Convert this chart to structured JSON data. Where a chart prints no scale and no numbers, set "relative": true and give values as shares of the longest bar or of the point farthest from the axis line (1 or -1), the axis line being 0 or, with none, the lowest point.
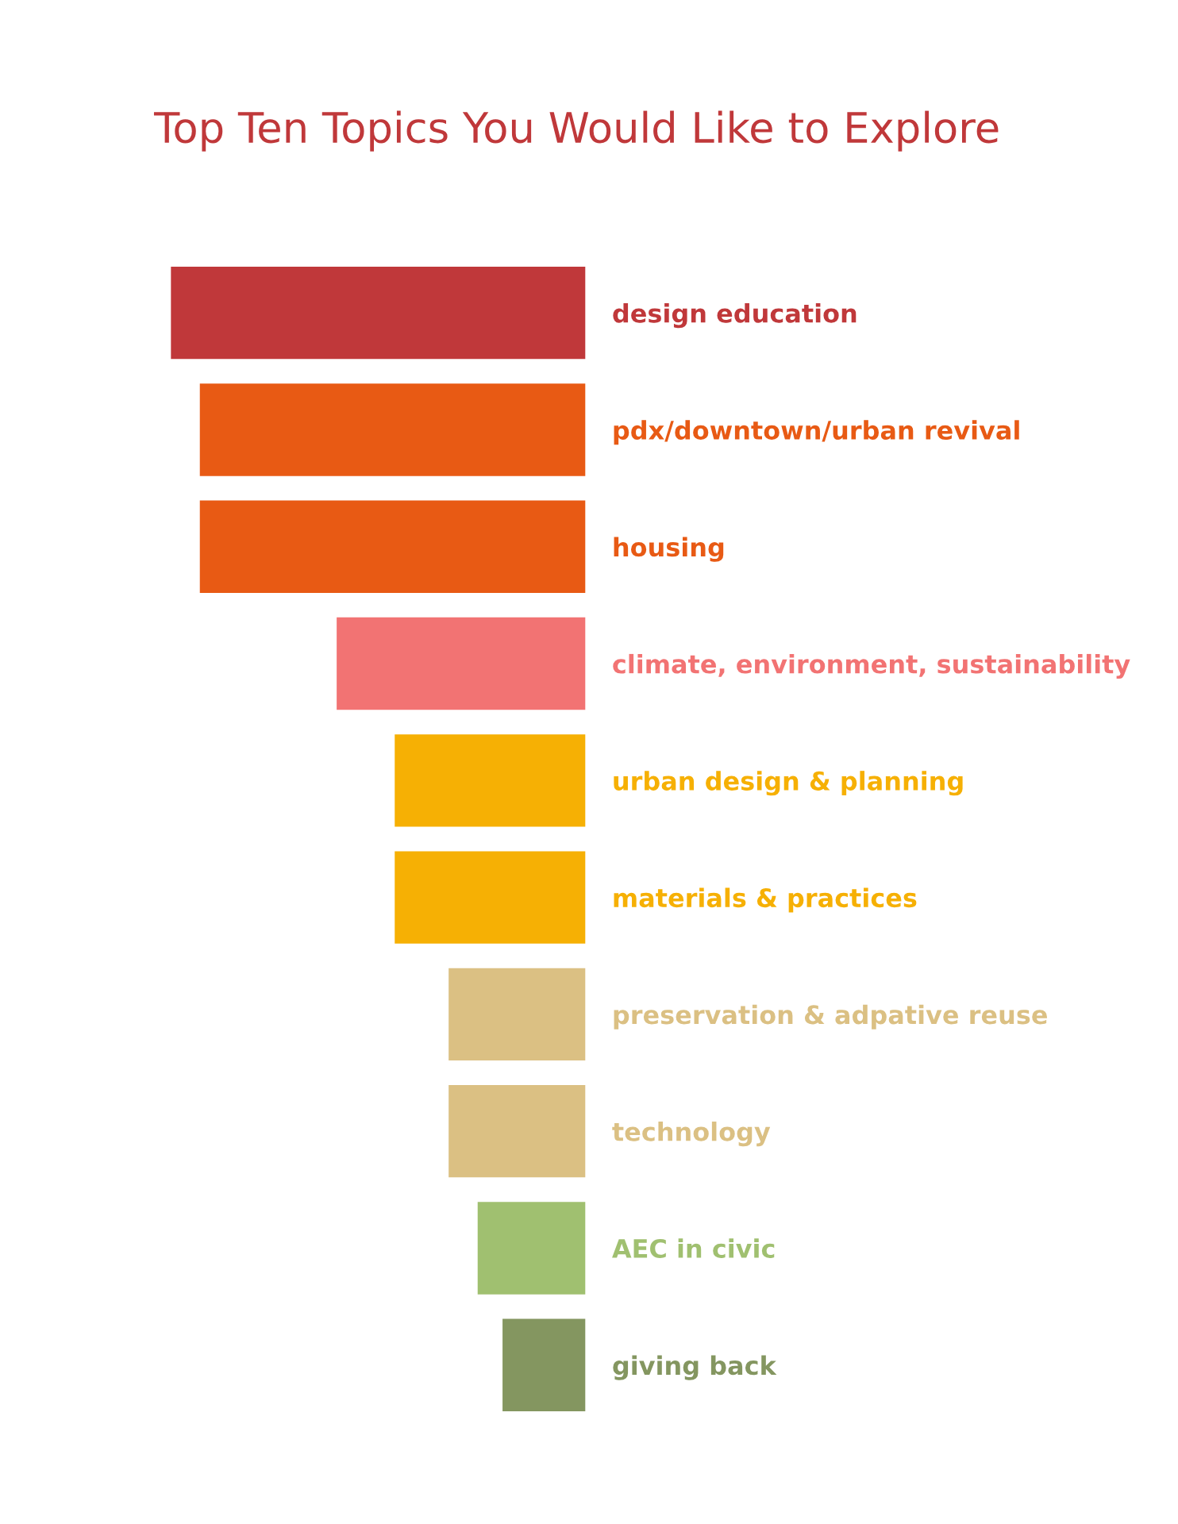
{
  "chart_data": {
    "type": "bar",
    "orientation": "horizontal",
    "relative": true,
    "title": "Top Ten Topics You Would Like to Explore",
    "categories": [
      "design education",
      "pdx/downtown/urban revival",
      "housing",
      "climate, environment, sustainability",
      "urban design & planning",
      "materials & practices",
      "preservation & adpative reuse",
      "technology",
      "AEC in civic",
      "giving back"
    ],
    "values": [
      1,
      0.93,
      0.93,
      0.6,
      0.46,
      0.46,
      0.33,
      0.33,
      0.26,
      0.2
    ],
    "colors": [
      "#c0383a",
      "#e85a14",
      "#e85a14",
      "#f27373",
      "#f6b004",
      "#f6b004",
      "#dbc083",
      "#dbc083",
      "#a0c070",
      "#849660"
    ],
    "grid": false
  }
}
